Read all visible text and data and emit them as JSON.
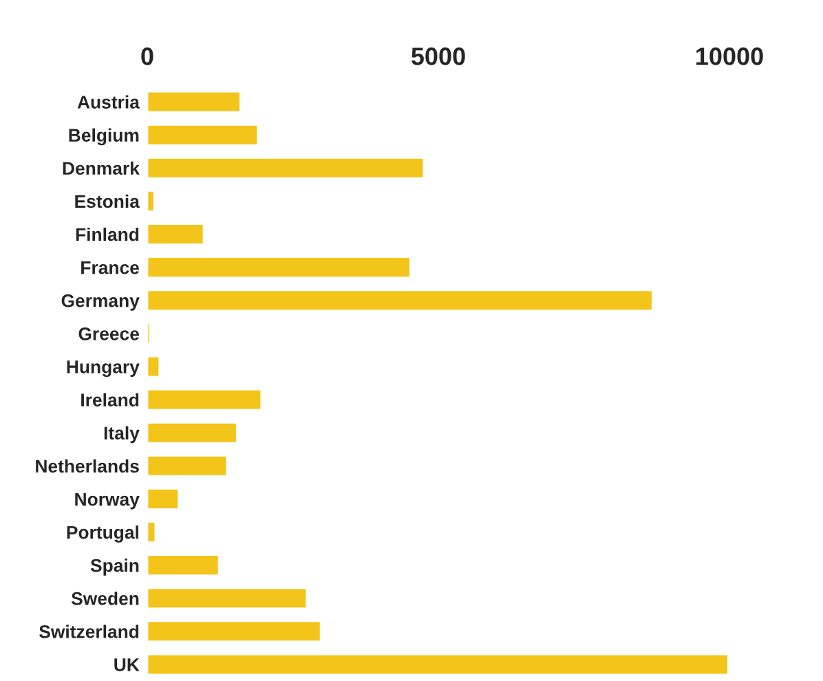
{
  "chart_data": {
    "type": "bar",
    "orientation": "horizontal",
    "categories": [
      "Austria",
      "Belgium",
      "Denmark",
      "Estonia",
      "Finland",
      "France",
      "Germany",
      "Greece",
      "Hungary",
      "Ireland",
      "Italy",
      "Netherlands",
      "Norway",
      "Portugal",
      "Spain",
      "Sweden",
      "Switzerland",
      "UK"
    ],
    "values": [
      1600,
      1900,
      4750,
      120,
      970,
      4520,
      8680,
      50,
      210,
      1960,
      1540,
      1370,
      540,
      140,
      1230,
      2740,
      2980,
      9980
    ],
    "color": "#f3c419",
    "xlim": [
      0,
      10000
    ],
    "xticks": [
      0,
      5000,
      10000
    ],
    "grid": false
  }
}
